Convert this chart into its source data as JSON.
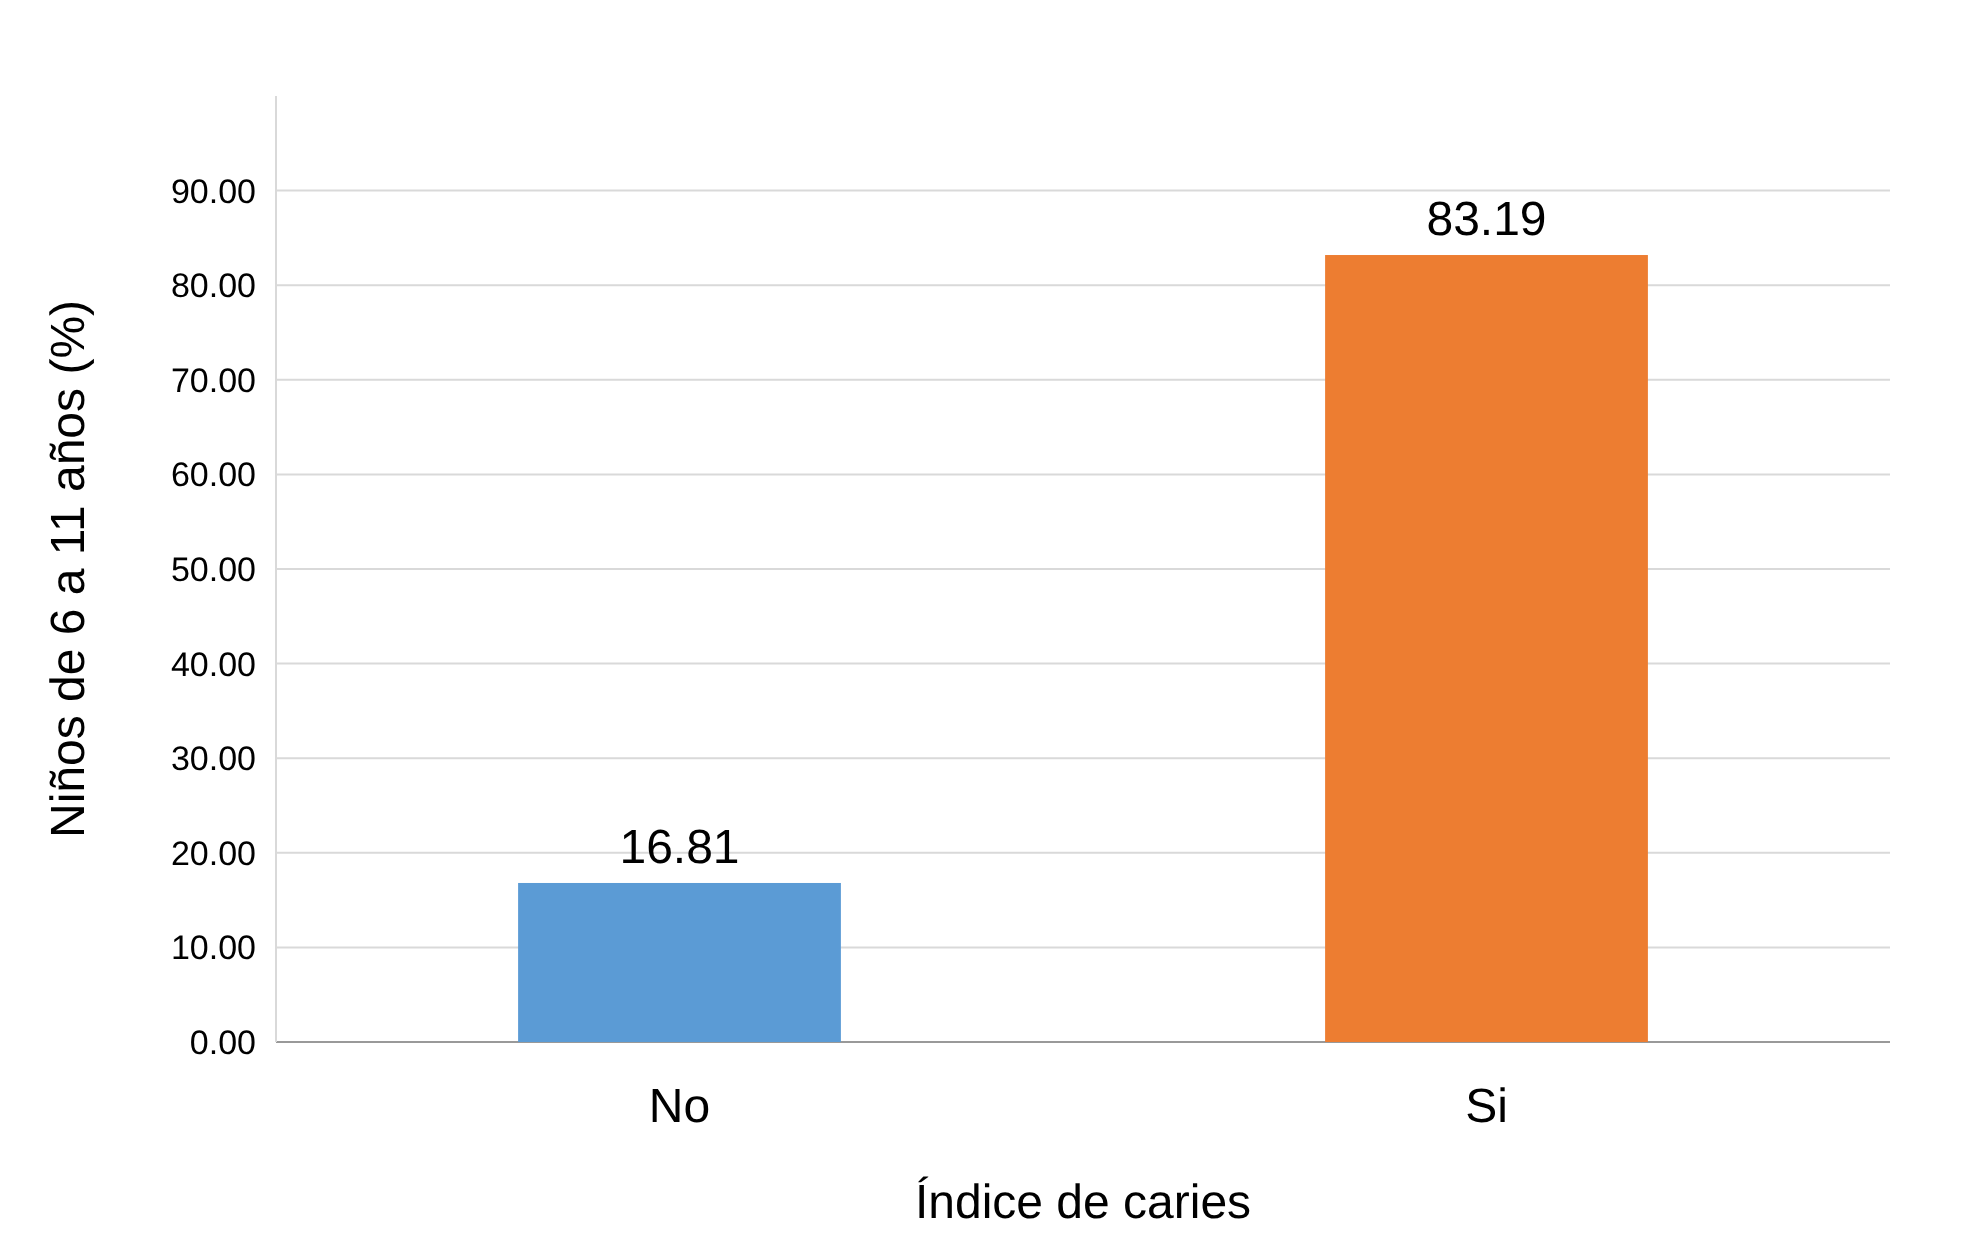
{
  "chart_data": {
    "type": "bar",
    "xlabel": "Índice de caries",
    "ylabel": "Niños de 6 a 11 años (%)",
    "categories": [
      "No",
      "Si"
    ],
    "values": [
      16.81,
      83.19
    ],
    "colors": [
      "#5b9bd5",
      "#ed7d31"
    ],
    "ylim": [
      0,
      100
    ],
    "yticks": [
      {
        "value": 0,
        "label": "0.00"
      },
      {
        "value": 10,
        "label": "10.00"
      },
      {
        "value": 20,
        "label": "20.00"
      },
      {
        "value": 30,
        "label": "30.00"
      },
      {
        "value": 40,
        "label": "40.00"
      },
      {
        "value": 50,
        "label": "50.00"
      },
      {
        "value": 60,
        "label": "60.00"
      },
      {
        "value": 70,
        "label": "70.00"
      },
      {
        "value": 80,
        "label": "80.00"
      },
      {
        "value": 90,
        "label": "90.00"
      }
    ],
    "grid": true,
    "data_labels": true
  }
}
